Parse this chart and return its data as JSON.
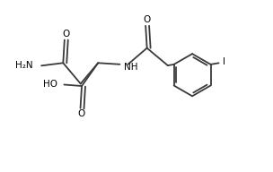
{
  "bg_color": "#ffffff",
  "line_color": "#3a3a3a",
  "text_color": "#000000",
  "lw": 1.3,
  "figsize": [
    3.04,
    1.92
  ],
  "dpi": 100,
  "xlim": [
    0,
    10
  ],
  "ylim": [
    0,
    6.3
  ]
}
